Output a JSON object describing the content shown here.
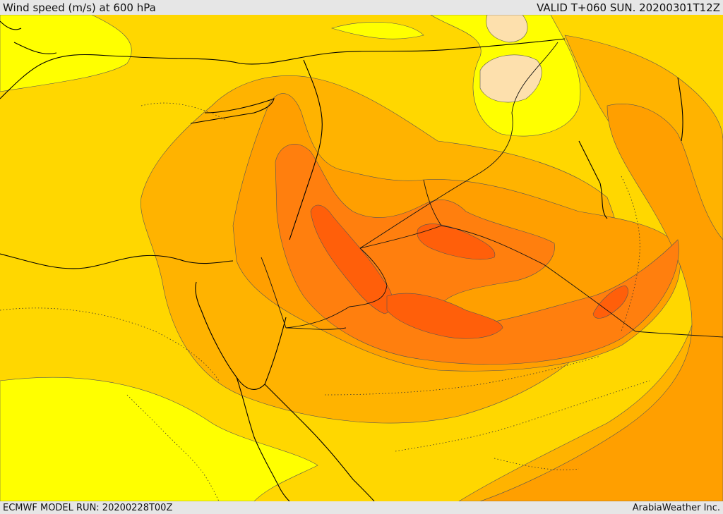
{
  "header": {
    "title": "Wind speed (m/s) at 600 hPa",
    "valid": "VALID T+060 SUN. 20200301T12Z"
  },
  "footer": {
    "model_run": "ECMWF MODEL RUN: 20200228T00Z",
    "credit": "ArabiaWeather Inc."
  },
  "legend_colors": {
    "calm": "#fde0ad",
    "light": "#ffff00",
    "moderate": "#ffd700",
    "fresh": "#ffb300",
    "strong": "#ff9f00",
    "very_strong": "#ff7f0e",
    "max": "#ff5f0a"
  }
}
